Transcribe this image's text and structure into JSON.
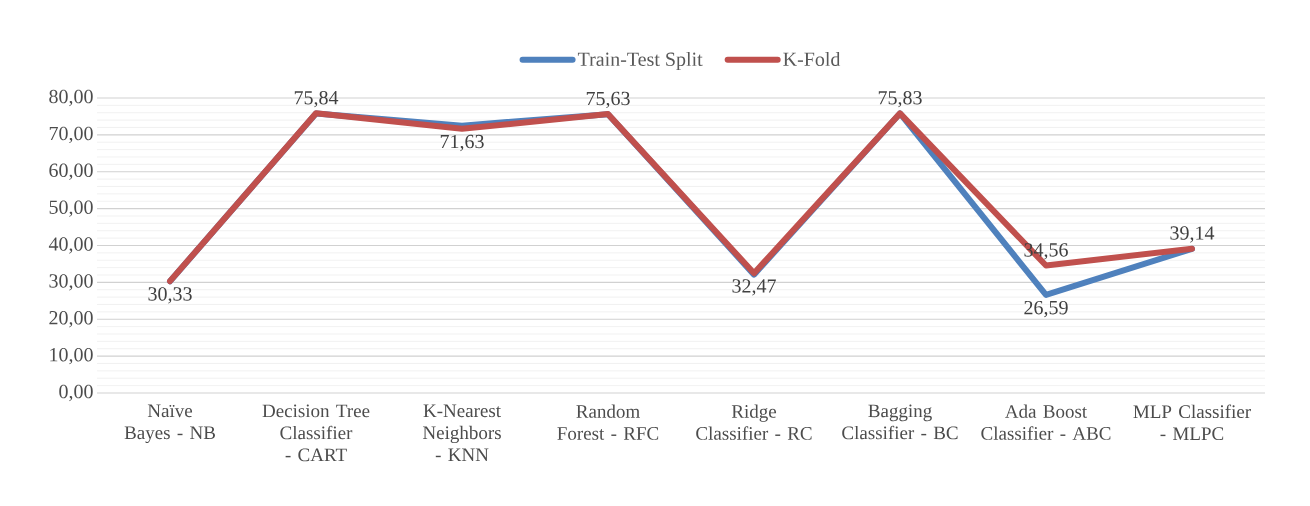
{
  "chart_data": {
    "type": "line",
    "categories": [
      "Naïve Bayes - NB",
      "Decision Tree Classifier - CART",
      "K-Nearest Neighbors - KNN",
      "Random Forest - RFC",
      "Ridge Classifier - RC",
      "Bagging Classifier - BC",
      "Ada Boost Classifier - ABC",
      "MLP Classifier - MLPC"
    ],
    "series": [
      {
        "name": "Train-Test Split",
        "color": "#4f81bd",
        "values": [
          30.3,
          75.8,
          72.5,
          75.6,
          32.1,
          75.8,
          26.59,
          39.1
        ],
        "value_labels": [
          null,
          null,
          null,
          null,
          null,
          null,
          "26,59",
          null
        ]
      },
      {
        "name": "K-Fold",
        "color": "#c0504d",
        "values": [
          30.33,
          75.84,
          71.63,
          75.63,
          32.47,
          75.83,
          34.56,
          39.14
        ],
        "value_labels": [
          "30,33",
          "75,84",
          "71,63",
          "75,63",
          "32,47",
          "75,83",
          "34,56",
          "39,14"
        ]
      }
    ],
    "ylim": [
      0,
      80
    ],
    "yticks": [
      {
        "value": 0,
        "label": "0,00"
      },
      {
        "value": 10,
        "label": "10,00"
      },
      {
        "value": 20,
        "label": "20,00"
      },
      {
        "value": 30,
        "label": "30,00"
      },
      {
        "value": 40,
        "label": "40,00"
      },
      {
        "value": 50,
        "label": "50,00"
      },
      {
        "value": 60,
        "label": "60,00"
      },
      {
        "value": 70,
        "label": "70,00"
      },
      {
        "value": 80,
        "label": "80,00"
      }
    ],
    "grid": "y",
    "legend": "top",
    "marker": "none",
    "line_style": "solid"
  }
}
